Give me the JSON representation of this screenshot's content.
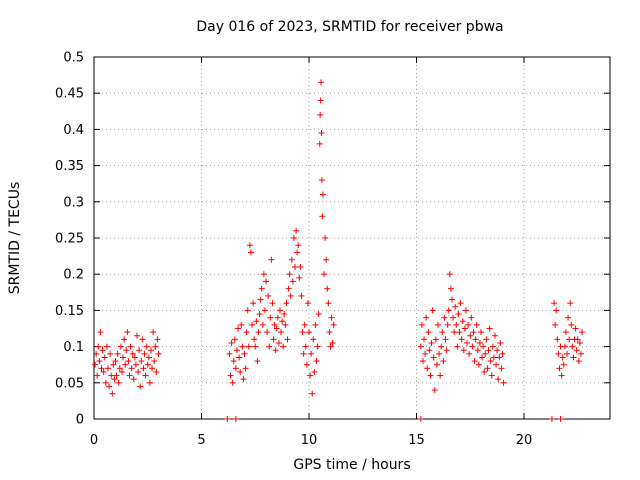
{
  "chart_data": {
    "type": "scatter",
    "title": "Day 016 of 2023, SRMTID for receiver pbwa",
    "xlabel": "GPS time / hours",
    "ylabel": "SRMTID / TECUs",
    "xlim": [
      0,
      24
    ],
    "ylim": [
      0,
      0.5
    ],
    "xticks": [
      0,
      5,
      10,
      15,
      20
    ],
    "yticks": [
      0,
      0.05,
      0.1,
      0.15,
      0.2,
      0.25,
      0.3,
      0.35,
      0.4,
      0.45,
      0.5
    ],
    "grid": true,
    "marker": "+",
    "color": "#ff0000",
    "series": [
      {
        "name": "SRMTID",
        "points": [
          [
            0.05,
            0.075
          ],
          [
            0.1,
            0.09
          ],
          [
            0.15,
            0.06
          ],
          [
            0.2,
            0.1
          ],
          [
            0.25,
            0.08
          ],
          [
            0.3,
            0.12
          ],
          [
            0.35,
            0.07
          ],
          [
            0.4,
            0.095
          ],
          [
            0.45,
            0.065
          ],
          [
            0.5,
            0.085
          ],
          [
            0.55,
            0.05
          ],
          [
            0.6,
            0.1
          ],
          [
            0.65,
            0.07
          ],
          [
            0.7,
            0.045
          ],
          [
            0.75,
            0.09
          ],
          [
            0.8,
            0.06
          ],
          [
            0.85,
            0.035
          ],
          [
            0.9,
            0.075
          ],
          [
            0.95,
            0.055
          ],
          [
            1.0,
            0.08
          ],
          [
            1.05,
            0.06
          ],
          [
            1.1,
            0.09
          ],
          [
            1.15,
            0.05
          ],
          [
            1.2,
            0.07
          ],
          [
            1.25,
            0.1
          ],
          [
            1.3,
            0.065
          ],
          [
            1.35,
            0.085
          ],
          [
            1.4,
            0.11
          ],
          [
            1.45,
            0.075
          ],
          [
            1.5,
            0.095
          ],
          [
            1.55,
            0.12
          ],
          [
            1.6,
            0.08
          ],
          [
            1.65,
            0.06
          ],
          [
            1.7,
            0.1
          ],
          [
            1.75,
            0.07
          ],
          [
            1.8,
            0.09
          ],
          [
            1.85,
            0.055
          ],
          [
            1.9,
            0.085
          ],
          [
            1.95,
            0.075
          ],
          [
            2.0,
            0.115
          ],
          [
            2.05,
            0.065
          ],
          [
            2.1,
            0.095
          ],
          [
            2.15,
            0.045
          ],
          [
            2.2,
            0.08
          ],
          [
            2.25,
            0.11
          ],
          [
            2.3,
            0.07
          ],
          [
            2.35,
            0.09
          ],
          [
            2.4,
            0.06
          ],
          [
            2.45,
            0.1
          ],
          [
            2.5,
            0.075
          ],
          [
            2.55,
            0.085
          ],
          [
            2.6,
            0.05
          ],
          [
            2.65,
            0.095
          ],
          [
            2.7,
            0.07
          ],
          [
            2.75,
            0.12
          ],
          [
            2.8,
            0.08
          ],
          [
            2.85,
            0.1
          ],
          [
            2.9,
            0.065
          ],
          [
            2.95,
            0.11
          ],
          [
            3.0,
            0.09
          ],
          [
            6.3,
            0.09
          ],
          [
            6.35,
            0.06
          ],
          [
            6.4,
            0.105
          ],
          [
            6.45,
            0.05
          ],
          [
            6.5,
            0.08
          ],
          [
            6.55,
            0.11
          ],
          [
            6.6,
            0.07
          ],
          [
            6.65,
            0.095
          ],
          [
            6.7,
            0.125
          ],
          [
            6.75,
            0.085
          ],
          [
            6.8,
            0.065
          ],
          [
            6.85,
            0.13
          ],
          [
            6.9,
            0.1
          ],
          [
            6.95,
            0.055
          ],
          [
            7.0,
            0.09
          ],
          [
            7.05,
            0.07
          ],
          [
            7.1,
            0.12
          ],
          [
            7.15,
            0.15
          ],
          [
            7.2,
            0.1
          ],
          [
            7.25,
            0.24
          ],
          [
            7.3,
            0.23
          ],
          [
            7.35,
            0.13
          ],
          [
            7.4,
            0.16
          ],
          [
            7.45,
            0.11
          ],
          [
            7.5,
            0.1
          ],
          [
            7.55,
            0.135
          ],
          [
            7.6,
            0.08
          ],
          [
            7.65,
            0.12
          ],
          [
            7.7,
            0.145
          ],
          [
            7.75,
            0.165
          ],
          [
            7.8,
            0.18
          ],
          [
            7.85,
            0.13
          ],
          [
            7.9,
            0.2
          ],
          [
            7.95,
            0.15
          ],
          [
            8.0,
            0.19
          ],
          [
            8.05,
            0.12
          ],
          [
            8.1,
            0.17
          ],
          [
            8.15,
            0.1
          ],
          [
            8.2,
            0.14
          ],
          [
            8.25,
            0.22
          ],
          [
            8.3,
            0.16
          ],
          [
            8.35,
            0.11
          ],
          [
            8.4,
            0.13
          ],
          [
            8.45,
            0.095
          ],
          [
            8.5,
            0.125
          ],
          [
            8.55,
            0.14
          ],
          [
            8.6,
            0.105
          ],
          [
            8.65,
            0.15
          ],
          [
            8.7,
            0.12
          ],
          [
            8.75,
            0.135
          ],
          [
            8.8,
            0.1
          ],
          [
            8.85,
            0.145
          ],
          [
            8.9,
            0.13
          ],
          [
            8.95,
            0.16
          ],
          [
            9.0,
            0.11
          ],
          [
            9.05,
            0.18
          ],
          [
            9.1,
            0.2
          ],
          [
            9.15,
            0.17
          ],
          [
            9.2,
            0.22
          ],
          [
            9.25,
            0.19
          ],
          [
            9.3,
            0.25
          ],
          [
            9.35,
            0.21
          ],
          [
            9.4,
            0.26
          ],
          [
            9.45,
            0.23
          ],
          [
            9.5,
            0.24
          ],
          [
            9.55,
            0.195
          ],
          [
            9.6,
            0.21
          ],
          [
            9.65,
            0.17
          ],
          [
            9.7,
            0.12
          ],
          [
            9.75,
            0.09
          ],
          [
            9.8,
            0.13
          ],
          [
            9.85,
            0.1
          ],
          [
            9.9,
            0.075
          ],
          [
            9.95,
            0.16
          ],
          [
            10.0,
            0.12
          ],
          [
            10.05,
            0.06
          ],
          [
            10.1,
            0.09
          ],
          [
            10.15,
            0.035
          ],
          [
            10.2,
            0.11
          ],
          [
            10.25,
            0.065
          ],
          [
            10.3,
            0.13
          ],
          [
            10.35,
            0.08
          ],
          [
            10.4,
            0.1
          ],
          [
            10.45,
            0.145
          ],
          [
            10.5,
            0.38
          ],
          [
            10.52,
            0.42
          ],
          [
            10.54,
            0.44
          ],
          [
            10.56,
            0.465
          ],
          [
            10.58,
            0.395
          ],
          [
            10.6,
            0.33
          ],
          [
            10.62,
            0.28
          ],
          [
            10.65,
            0.31
          ],
          [
            10.7,
            0.2
          ],
          [
            10.75,
            0.25
          ],
          [
            10.8,
            0.22
          ],
          [
            10.85,
            0.18
          ],
          [
            10.9,
            0.16
          ],
          [
            10.95,
            0.12
          ],
          [
            11.0,
            0.1
          ],
          [
            11.05,
            0.14
          ],
          [
            11.1,
            0.105
          ],
          [
            11.15,
            0.13
          ],
          [
            15.2,
            0.1
          ],
          [
            15.25,
            0.13
          ],
          [
            15.3,
            0.08
          ],
          [
            15.35,
            0.11
          ],
          [
            15.4,
            0.09
          ],
          [
            15.45,
            0.14
          ],
          [
            15.5,
            0.07
          ],
          [
            15.55,
            0.12
          ],
          [
            15.6,
            0.095
          ],
          [
            15.65,
            0.06
          ],
          [
            15.7,
            0.105
          ],
          [
            15.75,
            0.15
          ],
          [
            15.8,
            0.085
          ],
          [
            15.85,
            0.04
          ],
          [
            15.9,
            0.11
          ],
          [
            15.95,
            0.075
          ],
          [
            16.0,
            0.13
          ],
          [
            16.05,
            0.09
          ],
          [
            16.1,
            0.06
          ],
          [
            16.15,
            0.1
          ],
          [
            16.2,
            0.12
          ],
          [
            16.25,
            0.08
          ],
          [
            16.3,
            0.14
          ],
          [
            16.35,
            0.11
          ],
          [
            16.4,
            0.095
          ],
          [
            16.45,
            0.13
          ],
          [
            16.5,
            0.15
          ],
          [
            16.55,
            0.2
          ],
          [
            16.6,
            0.18
          ],
          [
            16.65,
            0.165
          ],
          [
            16.7,
            0.14
          ],
          [
            16.75,
            0.12
          ],
          [
            16.8,
            0.155
          ],
          [
            16.85,
            0.13
          ],
          [
            16.9,
            0.1
          ],
          [
            16.95,
            0.145
          ],
          [
            17.0,
            0.12
          ],
          [
            17.05,
            0.16
          ],
          [
            17.1,
            0.11
          ],
          [
            17.15,
            0.135
          ],
          [
            17.2,
            0.095
          ],
          [
            17.25,
            0.125
          ],
          [
            17.3,
            0.15
          ],
          [
            17.35,
            0.105
          ],
          [
            17.4,
            0.13
          ],
          [
            17.45,
            0.09
          ],
          [
            17.5,
            0.115
          ],
          [
            17.55,
            0.14
          ],
          [
            17.6,
            0.1
          ],
          [
            17.65,
            0.12
          ],
          [
            17.7,
            0.08
          ],
          [
            17.75,
            0.11
          ],
          [
            17.8,
            0.13
          ],
          [
            17.85,
            0.095
          ],
          [
            17.9,
            0.075
          ],
          [
            17.95,
            0.105
          ],
          [
            18.0,
            0.12
          ],
          [
            18.05,
            0.085
          ],
          [
            18.1,
            0.1
          ],
          [
            18.15,
            0.065
          ],
          [
            18.2,
            0.09
          ],
          [
            18.25,
            0.11
          ],
          [
            18.3,
            0.07
          ],
          [
            18.35,
            0.095
          ],
          [
            18.4,
            0.125
          ],
          [
            18.45,
            0.08
          ],
          [
            18.5,
            0.06
          ],
          [
            18.55,
            0.1
          ],
          [
            18.6,
            0.085
          ],
          [
            18.65,
            0.115
          ],
          [
            18.7,
            0.075
          ],
          [
            18.75,
            0.095
          ],
          [
            18.8,
            0.055
          ],
          [
            18.85,
            0.085
          ],
          [
            18.9,
            0.105
          ],
          [
            18.95,
            0.07
          ],
          [
            19.0,
            0.09
          ],
          [
            19.05,
            0.05
          ],
          [
            21.4,
            0.16
          ],
          [
            21.45,
            0.13
          ],
          [
            21.5,
            0.15
          ],
          [
            21.55,
            0.11
          ],
          [
            21.6,
            0.09
          ],
          [
            21.65,
            0.07
          ],
          [
            21.7,
            0.1
          ],
          [
            21.75,
            0.06
          ],
          [
            21.8,
            0.085
          ],
          [
            21.85,
            0.075
          ],
          [
            21.9,
            0.1
          ],
          [
            21.95,
            0.12
          ],
          [
            22.0,
            0.09
          ],
          [
            22.05,
            0.14
          ],
          [
            22.1,
            0.11
          ],
          [
            22.15,
            0.16
          ],
          [
            22.2,
            0.13
          ],
          [
            22.25,
            0.1
          ],
          [
            22.3,
            0.085
          ],
          [
            22.35,
            0.11
          ],
          [
            22.4,
            0.125
          ],
          [
            22.45,
            0.095
          ],
          [
            22.5,
            0.11
          ],
          [
            22.55,
            0.08
          ],
          [
            22.6,
            0.105
          ],
          [
            22.65,
            0.09
          ],
          [
            22.7,
            0.12
          ]
        ]
      },
      {
        "name": "zero-markers",
        "points": [
          [
            6.2,
            0
          ],
          [
            6.6,
            0
          ],
          [
            15.2,
            0
          ],
          [
            21.3,
            0
          ],
          [
            21.7,
            0
          ]
        ]
      }
    ]
  }
}
